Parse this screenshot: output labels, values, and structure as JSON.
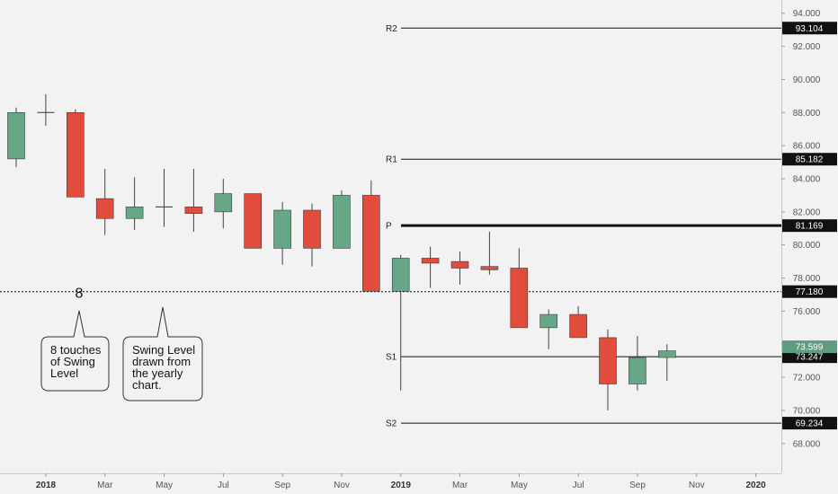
{
  "chart_data": {
    "type": "candlestick",
    "instrument_interval": "monthly",
    "x_ticks": [
      "2018",
      "Mar",
      "May",
      "Jul",
      "Sep",
      "Nov",
      "2019",
      "Mar",
      "May",
      "Jul",
      "Sep",
      "Nov",
      "2020"
    ],
    "y_ticks": [
      "94.000",
      "92.000",
      "90.000",
      "88.000",
      "86.000",
      "84.000",
      "82.000",
      "80.000",
      "78.000",
      "76.000",
      "74.000",
      "72.000",
      "70.000",
      "68.000"
    ],
    "ylim": [
      66.2,
      94.8
    ],
    "candles": [
      {
        "date": "2018-01",
        "open": 85.2,
        "high": 88.3,
        "low": 84.7,
        "close": 88.0
      },
      {
        "date": "2018-02",
        "open": 88.0,
        "high": 89.1,
        "low": 87.2,
        "close": 88.0
      },
      {
        "date": "2018-03",
        "open": 88.0,
        "high": 88.2,
        "low": 82.9,
        "close": 82.9
      },
      {
        "date": "2018-04",
        "open": 82.8,
        "high": 84.6,
        "low": 80.6,
        "close": 81.6
      },
      {
        "date": "2018-05",
        "open": 81.6,
        "high": 84.1,
        "low": 80.9,
        "close": 82.3
      },
      {
        "date": "2018-06",
        "open": 82.3,
        "high": 84.6,
        "low": 81.1,
        "close": 82.3
      },
      {
        "date": "2018-07",
        "open": 82.3,
        "high": 84.6,
        "low": 80.8,
        "close": 81.9
      },
      {
        "date": "2018-08",
        "open": 82.0,
        "high": 84.0,
        "low": 81.0,
        "close": 83.1
      },
      {
        "date": "2018-09",
        "open": 83.1,
        "high": 83.1,
        "low": 79.8,
        "close": 79.8
      },
      {
        "date": "2018-10",
        "open": 79.8,
        "high": 82.6,
        "low": 78.8,
        "close": 82.1
      },
      {
        "date": "2018-11",
        "open": 82.1,
        "high": 82.5,
        "low": 78.7,
        "close": 79.8
      },
      {
        "date": "2018-12",
        "open": 79.8,
        "high": 83.3,
        "low": 79.8,
        "close": 83.0
      },
      {
        "date": "2019-01",
        "open": 83.0,
        "high": 83.9,
        "low": 77.2,
        "close": 77.2
      },
      {
        "date": "2019-02",
        "open": 77.2,
        "high": 79.4,
        "low": 71.2,
        "close": 79.2
      },
      {
        "date": "2019-03",
        "open": 79.2,
        "high": 79.9,
        "low": 77.4,
        "close": 78.9
      },
      {
        "date": "2019-04",
        "open": 79.0,
        "high": 79.6,
        "low": 77.6,
        "close": 78.6
      },
      {
        "date": "2019-05",
        "open": 78.7,
        "high": 80.8,
        "low": 78.2,
        "close": 78.5
      },
      {
        "date": "2019-06",
        "open": 78.6,
        "high": 79.8,
        "low": 75.0,
        "close": 75.0
      },
      {
        "date": "2019-07",
        "open": 75.0,
        "high": 76.1,
        "low": 73.7,
        "close": 75.8
      },
      {
        "date": "2019-08",
        "open": 75.8,
        "high": 76.3,
        "low": 74.4,
        "close": 74.4
      },
      {
        "date": "2019-09",
        "open": 74.4,
        "high": 74.9,
        "low": 70.0,
        "close": 71.6
      },
      {
        "date": "2019-10",
        "open": 71.6,
        "high": 74.5,
        "low": 71.2,
        "close": 73.2
      },
      {
        "date": "2019-11",
        "open": 73.2,
        "high": 74.0,
        "low": 71.8,
        "close": 73.6
      }
    ],
    "pivot_levels": [
      {
        "label": "R2",
        "value": 93.104,
        "tag": "93.104"
      },
      {
        "label": "R1",
        "value": 85.182,
        "tag": "85.182"
      },
      {
        "label": "P",
        "value": 81.169,
        "tag": "81.169"
      },
      {
        "label": "S1",
        "value": 73.247,
        "tag": "73.247"
      },
      {
        "label": "S2",
        "value": 69.234,
        "tag": "69.234"
      }
    ],
    "swing_level": {
      "value": 77.18,
      "tag": "77.180"
    },
    "current_price": {
      "value": 73.599,
      "tag": "73.599"
    },
    "annotations": {
      "marker": "8",
      "callout_1": [
        "8 touches",
        "of Swing",
        "Level"
      ],
      "callout_2": [
        "Swing Level",
        "drawn from",
        "the yearly",
        "chart."
      ]
    },
    "colors": {
      "up": "#66a788",
      "down": "#e24c3c",
      "level": "#111111",
      "tag_bg": "#111111",
      "price_tag_bg": "#5f9c80"
    },
    "grid": false
  }
}
